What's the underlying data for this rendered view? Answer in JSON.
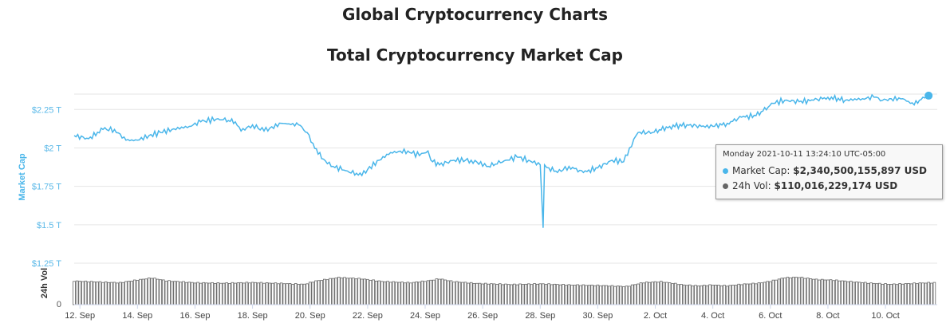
{
  "page": {
    "title": "Global Cryptocurrency Charts"
  },
  "tooltip": {
    "date": "Monday 2021-10-11 13:24:10 UTC-05:00",
    "mcap_label": "Market Cap:",
    "mcap_value": "$2,340,500,155,897 USD",
    "vol_label": "24h Vol:",
    "vol_value": "$110,016,229,174 USD"
  },
  "colors": {
    "market_cap": "#4ab6ea",
    "volume": "#666666",
    "grid": "#e6e6e6"
  },
  "chart_data": {
    "type": "line",
    "title": "Total Cryptocurrency Market Cap",
    "ylabel": "Market Cap",
    "ylabel2": "24h Vol",
    "ylim": [
      1.25,
      2.35
    ],
    "yticks": [
      "$1.25 T",
      "$1.5 T",
      "$1.75 T",
      "$2 T",
      "$2.25 T"
    ],
    "ytick_values": [
      1.25,
      1.5,
      1.75,
      2.0,
      2.25
    ],
    "vol_tick": "0",
    "xticks": [
      "12. Sep",
      "14. Sep",
      "16. Sep",
      "18. Sep",
      "20. Sep",
      "22. Sep",
      "24. Sep",
      "26. Sep",
      "28. Sep",
      "30. Sep",
      "2. Oct",
      "4. Oct",
      "6. Oct",
      "8. Oct",
      "10. Oct"
    ],
    "xtick_days": [
      0,
      2,
      4,
      6,
      8,
      10,
      12,
      14,
      16,
      18,
      20,
      22,
      24,
      26,
      28
    ],
    "xlim_days": [
      -0.2,
      29.8
    ],
    "grid": true,
    "legend": "none",
    "series": [
      {
        "name": "Market Cap",
        "unit": "T USD",
        "x": [
          -0.2,
          0.3,
          0.8,
          1.2,
          1.6,
          2.0,
          2.4,
          2.8,
          3.2,
          3.8,
          4.2,
          4.8,
          5.4,
          5.6,
          6.0,
          6.4,
          7.0,
          7.6,
          7.9,
          8.1,
          8.4,
          8.8,
          9.3,
          9.8,
          10.0,
          10.4,
          10.8,
          11.4,
          11.8,
          12.1,
          12.2,
          12.5,
          13.0,
          13.6,
          14.2,
          14.8,
          15.2,
          15.6,
          16.0,
          16.1,
          16.15,
          16.3,
          16.6,
          17.0,
          17.5,
          18.0,
          18.5,
          18.9,
          19.1,
          19.4,
          19.9,
          20.5,
          21.1,
          21.6,
          22.0,
          22.5,
          23.0,
          23.5,
          24.1,
          24.5,
          25.0,
          25.5,
          26.0,
          26.6,
          27.2,
          27.6,
          27.9,
          28.2,
          28.6,
          29.0,
          29.3,
          29.5
        ],
        "y": [
          2.08,
          2.06,
          2.12,
          2.12,
          2.05,
          2.05,
          2.08,
          2.1,
          2.12,
          2.14,
          2.17,
          2.19,
          2.17,
          2.11,
          2.15,
          2.11,
          2.16,
          2.15,
          2.1,
          2.03,
          1.93,
          1.88,
          1.85,
          1.82,
          1.86,
          1.92,
          1.97,
          1.98,
          1.95,
          1.98,
          1.92,
          1.89,
          1.92,
          1.92,
          1.88,
          1.92,
          1.94,
          1.92,
          1.89,
          1.48,
          1.89,
          1.87,
          1.84,
          1.88,
          1.84,
          1.87,
          1.92,
          1.91,
          2.0,
          2.1,
          2.1,
          2.14,
          2.15,
          2.14,
          2.14,
          2.16,
          2.2,
          2.21,
          2.29,
          2.31,
          2.3,
          2.31,
          2.33,
          2.31,
          2.32,
          2.33,
          2.31,
          2.32,
          2.32,
          2.28,
          2.33,
          2.34
        ]
      },
      {
        "name": "24h Vol",
        "unit": "B USD",
        "vol_max": 160,
        "x": [
          -0.2,
          1.4,
          1.6,
          2.5,
          3.0,
          4.0,
          5.0,
          6.0,
          7.0,
          7.8,
          8.2,
          9.0,
          9.8,
          10.5,
          11.5,
          12.1,
          12.5,
          13.0,
          13.8,
          15.0,
          16.0,
          17.0,
          18.0,
          19.0,
          19.6,
          20.2,
          21.0,
          21.5,
          22.0,
          22.5,
          23.0,
          23.6,
          24.0,
          24.5,
          25.0,
          25.6,
          26.2,
          26.8,
          27.5,
          28.2,
          28.8,
          29.5
        ],
        "y": [
          108,
          100,
          105,
          122,
          109,
          100,
          98,
          101,
          97,
          93,
          108,
          124,
          118,
          106,
          100,
          109,
          118,
          105,
          97,
          92,
          95,
          90,
          88,
          83,
          101,
          105,
          90,
          86,
          90,
          86,
          93,
          98,
          107,
          123,
          125,
          115,
          112,
          105,
          98,
          93,
          96,
          100
        ]
      }
    ],
    "highlight": {
      "x": 29.5,
      "y": 2.34
    }
  }
}
